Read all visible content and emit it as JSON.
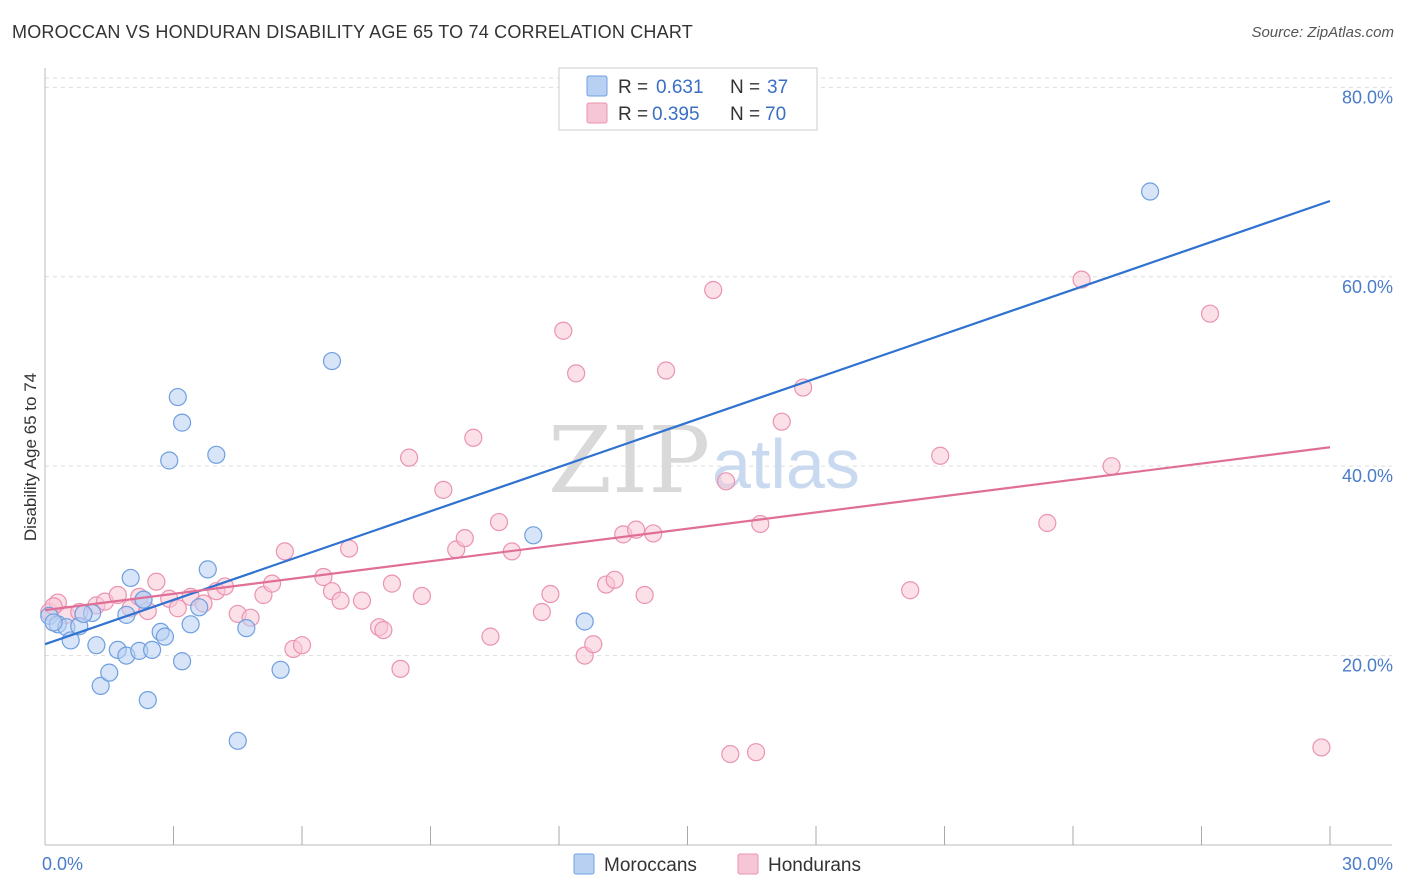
{
  "header": {
    "title": "MOROCCAN VS HONDURAN DISABILITY AGE 65 TO 74 CORRELATION CHART",
    "source": "Source: ZipAtlas.com"
  },
  "watermark": {
    "zip": "ZIP",
    "atlas": "atlas"
  },
  "colors": {
    "moroccans_fill": "#b8d0f2",
    "moroccans_stroke": "#6f9fe0",
    "moroccans_line": "#2f72d0",
    "hondurans_fill": "#f7c6d6",
    "hondurans_stroke": "#ea93b2",
    "hondurans_line": "#e06f98",
    "grid": "#dddddd",
    "tick_text": "#4a7cc9"
  },
  "legend_top": {
    "rows": [
      {
        "r_label": "R =",
        "r_value": "0.631",
        "n_label": "N =",
        "n_value": "37"
      },
      {
        "r_label": "R =",
        "r_value": "0.395",
        "n_label": "N =",
        "n_value": "70"
      }
    ]
  },
  "legend_bottom": {
    "items": [
      "Moroccans",
      "Hondurans"
    ]
  },
  "chart_data": {
    "type": "scatter",
    "title": "MOROCCAN VS HONDURAN DISABILITY AGE 65 TO 74 CORRELATION CHART",
    "xlabel": "",
    "ylabel": "Disability Age 65 to 74",
    "xlim": [
      0,
      30
    ],
    "ylim": [
      0,
      85
    ],
    "x_tick_labels": [
      {
        "value": 0,
        "label": "0.0%"
      },
      {
        "value": 30,
        "label": "30.0%"
      }
    ],
    "y_tick_labels": [
      {
        "value": 20,
        "label": "20.0%"
      },
      {
        "value": 40,
        "label": "40.0%"
      },
      {
        "value": 60,
        "label": "60.0%"
      },
      {
        "value": 80,
        "label": "80.0%"
      }
    ],
    "y_gridlines": [
      20,
      40,
      60,
      80
    ],
    "x_minor_ticks": [
      3,
      6,
      9,
      12,
      15,
      18,
      21,
      24,
      27,
      30
    ],
    "legend_placement": "top-center",
    "series": [
      {
        "name": "Moroccans",
        "R": 0.631,
        "N": 37,
        "trend": {
          "x": [
            0,
            30
          ],
          "y": [
            21.2,
            68.0
          ]
        },
        "points": [
          [
            0.1,
            24.2
          ],
          [
            0.3,
            23.3
          ],
          [
            0.5,
            23.0
          ],
          [
            0.6,
            21.6
          ],
          [
            0.8,
            23.1
          ],
          [
            1.1,
            24.5
          ],
          [
            1.3,
            16.8
          ],
          [
            1.5,
            18.2
          ],
          [
            1.2,
            21.1
          ],
          [
            1.7,
            20.6
          ],
          [
            1.9,
            20.0
          ],
          [
            1.9,
            24.3
          ],
          [
            2.0,
            28.2
          ],
          [
            2.2,
            20.5
          ],
          [
            2.3,
            25.9
          ],
          [
            2.4,
            15.3
          ],
          [
            2.5,
            20.6
          ],
          [
            2.7,
            22.5
          ],
          [
            2.8,
            22.0
          ],
          [
            2.9,
            40.6
          ],
          [
            3.1,
            47.3
          ],
          [
            3.2,
            44.6
          ],
          [
            3.2,
            19.4
          ],
          [
            3.4,
            23.3
          ],
          [
            3.6,
            25.1
          ],
          [
            3.8,
            29.1
          ],
          [
            4.0,
            41.2
          ],
          [
            4.5,
            11.0
          ],
          [
            4.7,
            22.9
          ],
          [
            5.5,
            18.5
          ],
          [
            6.7,
            51.1
          ],
          [
            11.4,
            32.7
          ],
          [
            12.6,
            23.6
          ],
          [
            25.8,
            69.0
          ],
          [
            0.2,
            23.5
          ],
          [
            0.9,
            24.4
          ],
          [
            2.3,
            25.9
          ]
        ]
      },
      {
        "name": "Hondurans",
        "R": 0.395,
        "N": 70,
        "trend": {
          "x": [
            0,
            30
          ],
          "y": [
            24.8,
            42.0
          ]
        },
        "points": [
          [
            0.1,
            24.6
          ],
          [
            0.3,
            25.6
          ],
          [
            0.5,
            24.3
          ],
          [
            0.8,
            24.6
          ],
          [
            1.2,
            25.3
          ],
          [
            1.4,
            25.7
          ],
          [
            1.7,
            26.4
          ],
          [
            2.0,
            25.0
          ],
          [
            2.2,
            26.2
          ],
          [
            2.4,
            24.7
          ],
          [
            2.6,
            27.8
          ],
          [
            2.9,
            26.0
          ],
          [
            3.1,
            25.0
          ],
          [
            3.4,
            26.2
          ],
          [
            3.7,
            25.5
          ],
          [
            4.0,
            26.8
          ],
          [
            4.2,
            27.3
          ],
          [
            4.5,
            24.4
          ],
          [
            4.8,
            24.0
          ],
          [
            5.1,
            26.4
          ],
          [
            5.3,
            27.6
          ],
          [
            5.6,
            31.0
          ],
          [
            5.8,
            20.7
          ],
          [
            6.0,
            21.1
          ],
          [
            6.5,
            28.3
          ],
          [
            6.7,
            26.8
          ],
          [
            6.9,
            25.8
          ],
          [
            7.1,
            31.3
          ],
          [
            7.4,
            25.8
          ],
          [
            7.8,
            23.0
          ],
          [
            7.9,
            22.7
          ],
          [
            8.1,
            27.6
          ],
          [
            8.3,
            18.6
          ],
          [
            8.5,
            40.9
          ],
          [
            8.8,
            26.3
          ],
          [
            9.3,
            37.5
          ],
          [
            9.6,
            31.2
          ],
          [
            9.8,
            32.4
          ],
          [
            10.0,
            43.0
          ],
          [
            10.4,
            22.0
          ],
          [
            10.6,
            34.1
          ],
          [
            10.9,
            31.0
          ],
          [
            11.6,
            24.6
          ],
          [
            11.8,
            26.5
          ],
          [
            12.1,
            54.3
          ],
          [
            12.4,
            49.8
          ],
          [
            12.6,
            20.0
          ],
          [
            12.8,
            21.2
          ],
          [
            13.1,
            27.5
          ],
          [
            13.3,
            28.0
          ],
          [
            13.5,
            32.8
          ],
          [
            13.8,
            33.3
          ],
          [
            14.0,
            26.4
          ],
          [
            14.2,
            32.9
          ],
          [
            14.5,
            50.1
          ],
          [
            15.6,
            58.6
          ],
          [
            15.9,
            38.4
          ],
          [
            16.0,
            9.6
          ],
          [
            16.6,
            9.8
          ],
          [
            16.7,
            33.9
          ],
          [
            17.2,
            44.7
          ],
          [
            17.7,
            48.3
          ],
          [
            20.2,
            26.9
          ],
          [
            20.9,
            41.1
          ],
          [
            23.4,
            34.0
          ],
          [
            24.2,
            59.7
          ],
          [
            24.9,
            40.0
          ],
          [
            27.2,
            56.1
          ],
          [
            29.8,
            10.3
          ],
          [
            0.2,
            25.2
          ]
        ]
      }
    ]
  }
}
